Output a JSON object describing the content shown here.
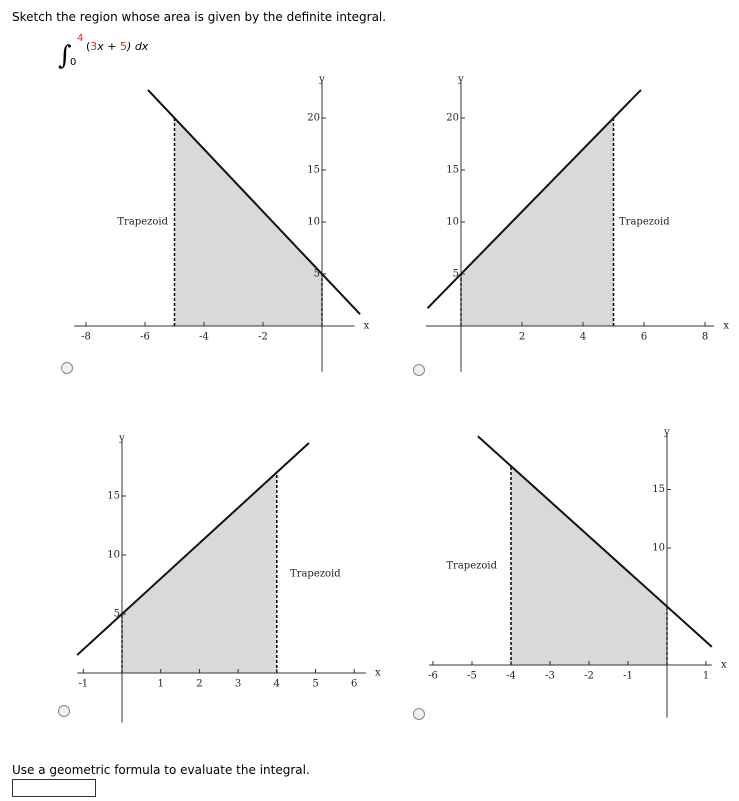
{
  "question": "Sketch the region whose area is given by the definite integral.",
  "integral": {
    "symbol": "∫",
    "upper": 4,
    "lower": 0,
    "open": "(",
    "a": 3,
    "mid": "x +",
    "b": 5,
    "close": ") dx"
  },
  "options": [
    {
      "x_label": "x",
      "y_label": "y",
      "label": "Trapezoid",
      "xlim": [
        -8.4,
        1.1
      ],
      "ylim": [
        -4.4,
        23.5
      ],
      "xticks": [
        -8,
        -6,
        -4,
        -2
      ],
      "yticks": [
        5,
        10,
        15,
        20
      ],
      "line": {
        "x": [
          -5.9,
          1.29
        ],
        "y": [
          22.7,
          1.13
        ]
      },
      "region": [
        -5,
        0
      ]
    },
    {
      "x_label": "x",
      "y_label": "y",
      "label": "Trapezoid",
      "xlim": [
        -1.15,
        8.3
      ],
      "ylim": [
        -4.4,
        23.5
      ],
      "xticks": [
        2,
        4,
        6,
        8
      ],
      "yticks": [
        5,
        10,
        15,
        20
      ],
      "line": {
        "x": [
          -1.1,
          5.9
        ],
        "y": [
          1.7,
          22.7
        ]
      },
      "region": [
        0,
        5
      ]
    },
    {
      "x_label": "x",
      "y_label": "y",
      "label": "Trapezoid",
      "xlim": [
        -1.16,
        6.3
      ],
      "ylim": [
        -4.2,
        19.7
      ],
      "xticks": [
        -1,
        1,
        2,
        3,
        4,
        5,
        6
      ],
      "yticks": [
        5,
        10,
        15
      ],
      "line": {
        "x": [
          -1.16,
          4.83
        ],
        "y": [
          1.52,
          19.49
        ]
      },
      "region": [
        0,
        4
      ]
    },
    {
      "x_label": "x",
      "y_label": "y",
      "label": "Trapezoid",
      "xlim": [
        -6.1,
        1.15
      ],
      "ylim": [
        -4.5,
        19.7
      ],
      "xticks": [
        -6,
        -5,
        -4,
        -3,
        -2,
        -1,
        1
      ],
      "yticks": [
        10,
        15
      ],
      "line": {
        "x": [
          -4.85,
          1.15
        ],
        "y": [
          19.55,
          1.55
        ]
      },
      "region": [
        -4,
        0
      ]
    }
  ],
  "prompt": "Use a geometric formula to evaluate the integral."
}
